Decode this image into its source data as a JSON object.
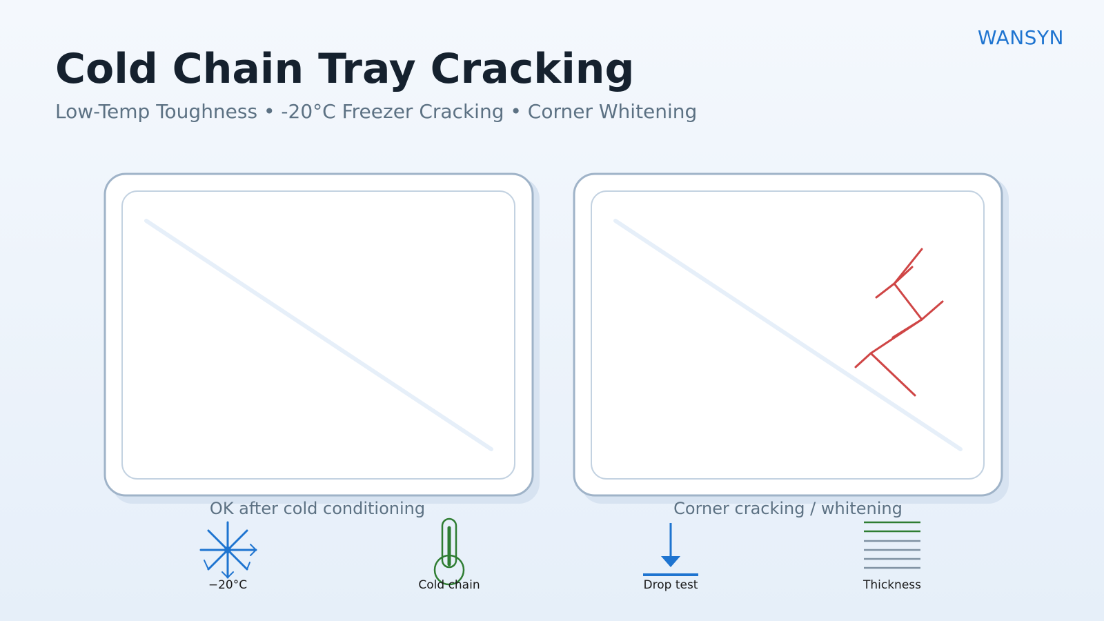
{
  "header": {
    "brand": "WANSYN",
    "title": "Cold Chain Tray Cracking",
    "subtitle": "Low-Temp Toughness • -20°C Freezer Cracking • Corner Whitening"
  },
  "trays": [
    {
      "caption": "OK after cold conditioning",
      "state": "ok"
    },
    {
      "caption": "Corner cracking / whitening",
      "state": "cracked"
    }
  ],
  "icons": [
    {
      "name": "snowflake-icon",
      "label": "−20°C"
    },
    {
      "name": "thermometer-icon",
      "label": "Cold chain"
    },
    {
      "name": "drop-test-icon",
      "label": "Drop test"
    },
    {
      "name": "thickness-icon",
      "label": "Thickness"
    }
  ],
  "colors": {
    "brand": "#1e74d0",
    "crack": "#cf4545",
    "cold": "#1e74d0",
    "green": "#2e7d32",
    "tray_border": "#9fb3c8"
  }
}
